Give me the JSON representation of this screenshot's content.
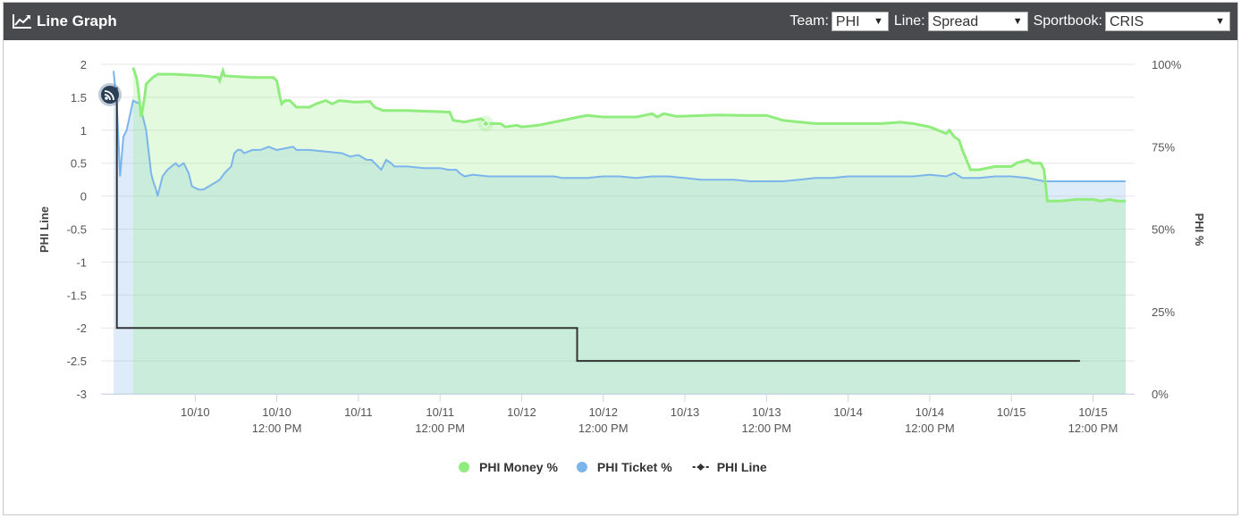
{
  "header": {
    "title": "Line Graph",
    "team_label": "Team:",
    "team_value": "PHI",
    "line_label": "Line:",
    "line_value": "Spread",
    "sportsbook_label": "Sportbook:",
    "sportsbook_value": "CRIS"
  },
  "chart_data": {
    "type": "line",
    "left_axis": {
      "label": "PHI Line",
      "ticks": [
        "2",
        "1.5",
        "1",
        "0.5",
        "0",
        "-0.5",
        "-1",
        "-1.5",
        "-2",
        "-2.5",
        "-3"
      ],
      "range": [
        -3,
        2
      ]
    },
    "right_axis": {
      "label": "PHI %",
      "ticks": [
        "100%",
        "75%",
        "50%",
        "25%",
        "0%"
      ],
      "range": [
        0,
        100
      ]
    },
    "x_axis": {
      "ticks": [
        {
          "t": 0.5,
          "l1": "10/10",
          "l2": ""
        },
        {
          "t": 1.0,
          "l1": "10/10",
          "l2": "12:00 PM"
        },
        {
          "t": 1.5,
          "l1": "10/11",
          "l2": ""
        },
        {
          "t": 2.0,
          "l1": "10/11",
          "l2": "12:00 PM"
        },
        {
          "t": 2.5,
          "l1": "10/12",
          "l2": ""
        },
        {
          "t": 3.0,
          "l1": "10/12",
          "l2": "12:00 PM"
        },
        {
          "t": 3.5,
          "l1": "10/13",
          "l2": ""
        },
        {
          "t": 4.0,
          "l1": "10/13",
          "l2": "12:00 PM"
        },
        {
          "t": 4.5,
          "l1": "10/14",
          "l2": ""
        },
        {
          "t": 5.0,
          "l1": "10/14",
          "l2": "12:00 PM"
        },
        {
          "t": 5.5,
          "l1": "10/15",
          "l2": ""
        },
        {
          "t": 6.0,
          "l1": "10/15",
          "l2": "12:00 PM"
        }
      ],
      "range": [
        0.0,
        6.2
      ]
    },
    "legend": [
      {
        "name": "PHI Money %",
        "color": "#90ed7d",
        "marker": "circle"
      },
      {
        "name": "PHI Ticket %",
        "color": "#7cb5ec",
        "marker": "circle"
      },
      {
        "name": "PHI Line",
        "color": "#333333",
        "marker": "diamond-line"
      }
    ],
    "series": [
      {
        "name": "PHI Money %",
        "color": "#90ed7d",
        "axis": "right",
        "points": [
          [
            0.12,
            99
          ],
          [
            0.14,
            96
          ],
          [
            0.15,
            93
          ],
          [
            0.17,
            84
          ],
          [
            0.19,
            90
          ],
          [
            0.2,
            94
          ],
          [
            0.24,
            96
          ],
          [
            0.27,
            97
          ],
          [
            0.37,
            97
          ],
          [
            0.55,
            96.5
          ],
          [
            0.64,
            96
          ],
          [
            0.65,
            95
          ],
          [
            0.67,
            98
          ],
          [
            0.68,
            96.5
          ],
          [
            0.85,
            96
          ],
          [
            0.98,
            96
          ],
          [
            1.0,
            95
          ],
          [
            1.02,
            90
          ],
          [
            1.03,
            88
          ],
          [
            1.05,
            89
          ],
          [
            1.08,
            89
          ],
          [
            1.12,
            87
          ],
          [
            1.2,
            87
          ],
          [
            1.24,
            88
          ],
          [
            1.3,
            89
          ],
          [
            1.34,
            88
          ],
          [
            1.38,
            89
          ],
          [
            1.48,
            88.5
          ],
          [
            1.57,
            88.7
          ],
          [
            1.6,
            87
          ],
          [
            1.65,
            86
          ],
          [
            1.8,
            86
          ],
          [
            2.06,
            85.5
          ],
          [
            2.08,
            83
          ],
          [
            2.15,
            82.5
          ],
          [
            2.25,
            83.5
          ],
          [
            2.3,
            82
          ],
          [
            2.37,
            82
          ],
          [
            2.4,
            81
          ],
          [
            2.47,
            81.5
          ],
          [
            2.5,
            81
          ],
          [
            2.6,
            81.5
          ],
          [
            2.7,
            82.5
          ],
          [
            2.8,
            83.5
          ],
          [
            2.9,
            84.5
          ],
          [
            3.0,
            84
          ],
          [
            3.2,
            84
          ],
          [
            3.25,
            84.5
          ],
          [
            3.3,
            85
          ],
          [
            3.33,
            84
          ],
          [
            3.37,
            85
          ],
          [
            3.45,
            84.2
          ],
          [
            3.7,
            84.6
          ],
          [
            3.85,
            84.5
          ],
          [
            4.0,
            84.5
          ],
          [
            4.1,
            83
          ],
          [
            4.2,
            82.5
          ],
          [
            4.3,
            82
          ],
          [
            4.5,
            82
          ],
          [
            4.7,
            82
          ],
          [
            4.82,
            82.4
          ],
          [
            4.9,
            82
          ],
          [
            5.0,
            81
          ],
          [
            5.05,
            80
          ],
          [
            5.1,
            79
          ],
          [
            5.12,
            80
          ],
          [
            5.15,
            78
          ],
          [
            5.18,
            77
          ],
          [
            5.2,
            74
          ],
          [
            5.25,
            68
          ],
          [
            5.3,
            68
          ],
          [
            5.4,
            69
          ],
          [
            5.5,
            69
          ],
          [
            5.53,
            70
          ],
          [
            5.6,
            71
          ],
          [
            5.63,
            70
          ],
          [
            5.68,
            70
          ],
          [
            5.7,
            68
          ],
          [
            5.72,
            58.5
          ],
          [
            5.8,
            58.5
          ],
          [
            5.9,
            59
          ],
          [
            6.0,
            59
          ],
          [
            6.05,
            58.5
          ],
          [
            6.1,
            59
          ],
          [
            6.15,
            58.5
          ],
          [
            6.2,
            58.5
          ]
        ]
      },
      {
        "name": "PHI Ticket %",
        "color": "#7cb5ec",
        "axis": "right",
        "points": [
          [
            0.0,
            98
          ],
          [
            0.02,
            88
          ],
          [
            0.04,
            66
          ],
          [
            0.06,
            78
          ],
          [
            0.08,
            80
          ],
          [
            0.12,
            89
          ],
          [
            0.16,
            88
          ],
          [
            0.2,
            80
          ],
          [
            0.23,
            67
          ],
          [
            0.24,
            65
          ],
          [
            0.26,
            62
          ],
          [
            0.27,
            60
          ],
          [
            0.28,
            62
          ],
          [
            0.3,
            66
          ],
          [
            0.33,
            68
          ],
          [
            0.38,
            70
          ],
          [
            0.4,
            69
          ],
          [
            0.43,
            70
          ],
          [
            0.46,
            67
          ],
          [
            0.48,
            63
          ],
          [
            0.52,
            62
          ],
          [
            0.55,
            62
          ],
          [
            0.62,
            64
          ],
          [
            0.65,
            65
          ],
          [
            0.68,
            67
          ],
          [
            0.7,
            68
          ],
          [
            0.72,
            69
          ],
          [
            0.74,
            73
          ],
          [
            0.76,
            74
          ],
          [
            0.78,
            74
          ],
          [
            0.8,
            73
          ],
          [
            0.85,
            74
          ],
          [
            0.9,
            74
          ],
          [
            0.95,
            75
          ],
          [
            1.0,
            74
          ],
          [
            1.05,
            74.5
          ],
          [
            1.1,
            75
          ],
          [
            1.12,
            74
          ],
          [
            1.2,
            74
          ],
          [
            1.3,
            73.5
          ],
          [
            1.4,
            73
          ],
          [
            1.45,
            72
          ],
          [
            1.5,
            72.5
          ],
          [
            1.55,
            71
          ],
          [
            1.58,
            71
          ],
          [
            1.6,
            70
          ],
          [
            1.64,
            68
          ],
          [
            1.67,
            71
          ],
          [
            1.7,
            70
          ],
          [
            1.72,
            69
          ],
          [
            1.8,
            69
          ],
          [
            1.9,
            68.5
          ],
          [
            2.0,
            68.5
          ],
          [
            2.05,
            68
          ],
          [
            2.1,
            68
          ],
          [
            2.12,
            67
          ],
          [
            2.15,
            66
          ],
          [
            2.2,
            66.5
          ],
          [
            2.3,
            66
          ],
          [
            2.4,
            66
          ],
          [
            2.5,
            66
          ],
          [
            2.6,
            66
          ],
          [
            2.7,
            66
          ],
          [
            2.75,
            65.5
          ],
          [
            2.8,
            65.5
          ],
          [
            2.9,
            65.5
          ],
          [
            3.0,
            66
          ],
          [
            3.1,
            66
          ],
          [
            3.2,
            65.5
          ],
          [
            3.3,
            66
          ],
          [
            3.4,
            66
          ],
          [
            3.5,
            65.5
          ],
          [
            3.6,
            65
          ],
          [
            3.7,
            65
          ],
          [
            3.8,
            65
          ],
          [
            3.9,
            64.5
          ],
          [
            4.0,
            64.5
          ],
          [
            4.1,
            64.5
          ],
          [
            4.2,
            65
          ],
          [
            4.3,
            65.5
          ],
          [
            4.4,
            65.5
          ],
          [
            4.5,
            66
          ],
          [
            4.6,
            66
          ],
          [
            4.7,
            66
          ],
          [
            4.8,
            66
          ],
          [
            4.9,
            66
          ],
          [
            5.0,
            66.5
          ],
          [
            5.1,
            66
          ],
          [
            5.15,
            67
          ],
          [
            5.2,
            65.5
          ],
          [
            5.3,
            65.5
          ],
          [
            5.4,
            66
          ],
          [
            5.5,
            66
          ],
          [
            5.6,
            65.5
          ],
          [
            5.7,
            64.5
          ],
          [
            5.8,
            64.5
          ],
          [
            5.9,
            64.5
          ],
          [
            6.0,
            64.5
          ],
          [
            6.1,
            64.5
          ],
          [
            6.2,
            64.5
          ]
        ]
      },
      {
        "name": "PHI Line",
        "color": "#333333",
        "axis": "left",
        "step": true,
        "points": [
          [
            0.02,
            1.65
          ],
          [
            0.02,
            -2.0
          ],
          [
            2.84,
            -2.0
          ],
          [
            2.84,
            -2.5
          ],
          [
            5.92,
            -2.5
          ]
        ]
      }
    ]
  }
}
